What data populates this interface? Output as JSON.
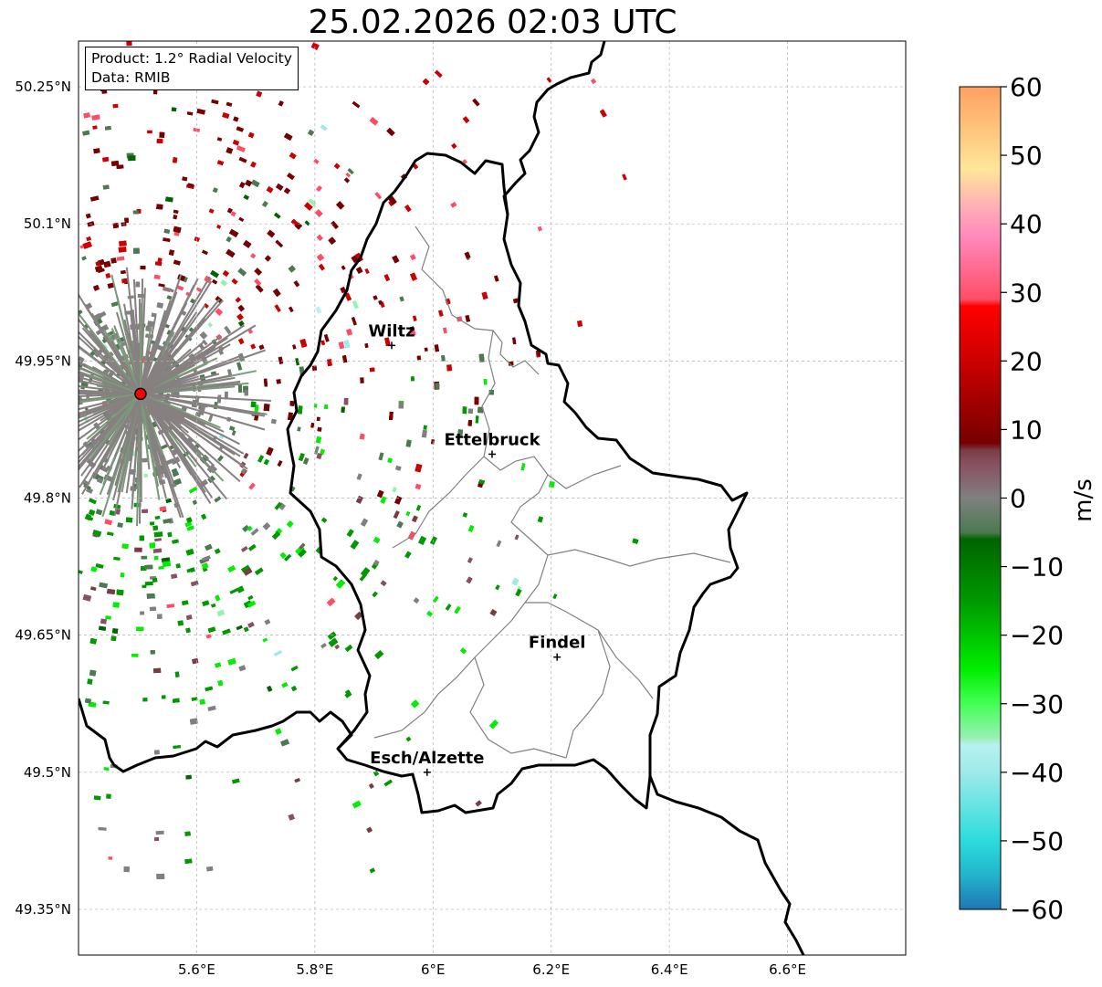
{
  "title": "25.02.2026 02:03 UTC",
  "info": {
    "product": "Product: 1.2° Radial Velocity",
    "data_source": "Data: RMIB"
  },
  "map": {
    "lon_range": [
      5.4,
      6.8
    ],
    "lat_range": [
      49.3,
      50.3
    ],
    "lon_ticks": [
      "5.6°E",
      "5.8°E",
      "6°E",
      "6.2°E",
      "6.4°E",
      "6.6°E"
    ],
    "lon_tick_values": [
      5.6,
      5.8,
      6.0,
      6.2,
      6.4,
      6.6
    ],
    "lat_ticks": [
      "49.35°N",
      "49.5°N",
      "49.65°N",
      "49.8°N",
      "49.95°N",
      "50.1°N",
      "50.25°N"
    ],
    "lat_tick_values": [
      49.35,
      49.5,
      49.65,
      49.8,
      49.95,
      50.1,
      50.25
    ],
    "radar_site": {
      "lon": 5.505,
      "lat": 49.914
    },
    "cities": [
      {
        "name": "Wiltz",
        "lon": 5.93,
        "lat": 49.967
      },
      {
        "name": "Ettelbruck",
        "lon": 6.1,
        "lat": 49.848
      },
      {
        "name": "Findel",
        "lon": 6.21,
        "lat": 49.626
      },
      {
        "name": "Esch/Alzette",
        "lon": 5.99,
        "lat": 49.5
      }
    ]
  },
  "colorbar": {
    "label": "m/s",
    "min": -60,
    "max": 60,
    "ticks": [
      "60",
      "50",
      "40",
      "30",
      "20",
      "10",
      "0",
      "−10",
      "−20",
      "−30",
      "−40",
      "−50",
      "−60"
    ],
    "tick_values": [
      60,
      50,
      40,
      30,
      20,
      10,
      0,
      -10,
      -20,
      -30,
      -40,
      -50,
      -60
    ],
    "stops": [
      {
        "v": -60,
        "c": "#1f77b4"
      },
      {
        "v": -55,
        "c": "#22b4cc"
      },
      {
        "v": -50,
        "c": "#2bdcdc"
      },
      {
        "v": -40,
        "c": "#9eeaea"
      },
      {
        "v": -36,
        "c": "#b8f0f0"
      },
      {
        "v": -35,
        "c": "#99f0b4"
      },
      {
        "v": -30,
        "c": "#44ff55"
      },
      {
        "v": -25,
        "c": "#00ee00"
      },
      {
        "v": -15,
        "c": "#009900"
      },
      {
        "v": -6,
        "c": "#006400"
      },
      {
        "v": -5,
        "c": "#4c7a50"
      },
      {
        "v": 0,
        "c": "#808080"
      },
      {
        "v": 5,
        "c": "#885060"
      },
      {
        "v": 7,
        "c": "#7a3c44"
      },
      {
        "v": 8,
        "c": "#770000"
      },
      {
        "v": 20,
        "c": "#cc0000"
      },
      {
        "v": 28,
        "c": "#ff0000"
      },
      {
        "v": 29,
        "c": "#ff4d66"
      },
      {
        "v": 38,
        "c": "#ff88bb"
      },
      {
        "v": 42,
        "c": "#ffaab8"
      },
      {
        "v": 48,
        "c": "#ffe699"
      },
      {
        "v": 60,
        "c": "#ffa060"
      }
    ]
  }
}
